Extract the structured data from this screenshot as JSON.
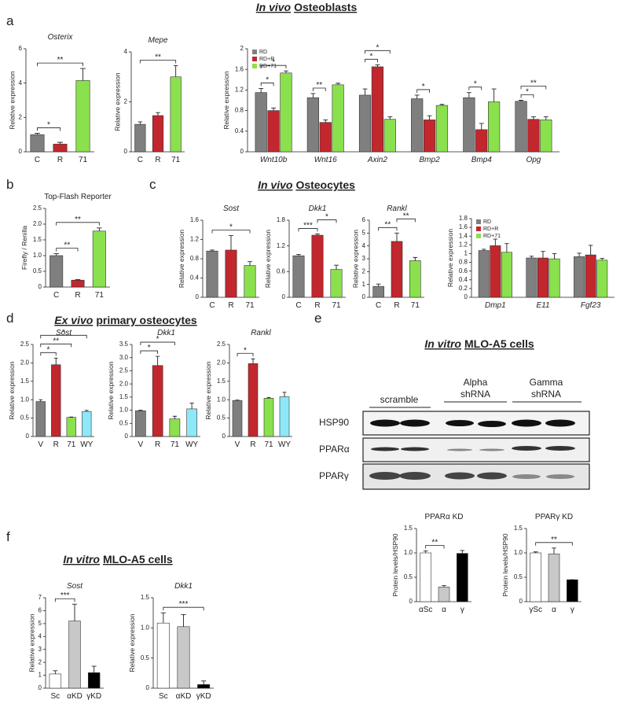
{
  "panels": [
    {
      "letter": "a",
      "heading": {
        "emphasis": "In vivo",
        "text": "Osteoblasts"
      }
    },
    {
      "letter": "b"
    },
    {
      "letter": "c",
      "heading": {
        "emphasis": "In vivo",
        "text": "Osteocytes"
      }
    },
    {
      "letter": "d",
      "heading": {
        "emphasis": "Ex vivo",
        "text": "primary osteocytes"
      }
    },
    {
      "letter": "e",
      "heading": {
        "emphasis": "In vitro",
        "text": "MLO-A5 cells"
      }
    },
    {
      "letter": "f",
      "heading": {
        "emphasis": "In vitro",
        "text": "MLO-A5 cells"
      }
    }
  ],
  "blot": {
    "groups": [
      [
        "scramble"
      ],
      [
        "Alpha",
        "shRNA"
      ],
      [
        "Gamma",
        "shRNA"
      ]
    ],
    "rows": [
      "HSP90",
      "PPARα",
      "PPARγ"
    ]
  },
  "chart_data": [
    {
      "type": "bar",
      "title": "Osterix",
      "italic_title": true,
      "ylabel": "Relative expression",
      "categories": [
        "C",
        "R",
        "71"
      ],
      "values": [
        1.0,
        0.45,
        4.15
      ],
      "errors": [
        0.08,
        0.1,
        0.7
      ],
      "colors": [
        "#7f7f7f",
        "#c1272d",
        "#8be04e"
      ],
      "ylim": [
        0,
        6
      ],
      "yticks": [
        0,
        2,
        4,
        6
      ],
      "significance": [
        {
          "label": "*",
          "between": [
            "C",
            "R"
          ]
        },
        {
          "label": "**",
          "between": [
            "C",
            "71"
          ]
        }
      ]
    },
    {
      "type": "bar",
      "title": "Mepe",
      "italic_title": true,
      "ylabel": "Relative expression",
      "categories": [
        "C",
        "R",
        "71"
      ],
      "values": [
        1.1,
        1.45,
        3.0
      ],
      "errors": [
        0.1,
        0.12,
        0.45
      ],
      "colors": [
        "#7f7f7f",
        "#c1272d",
        "#8be04e"
      ],
      "ylim": [
        0,
        4
      ],
      "yticks": [
        0,
        2,
        4
      ],
      "significance": [
        {
          "label": "**",
          "between": [
            "C",
            "71"
          ]
        }
      ]
    },
    {
      "type": "bar",
      "ylabel": "Relative expression",
      "italic_categories": true,
      "legend": "top-left",
      "categories": [
        "Wnt10b",
        "Wnt16",
        "Axin2",
        "Bmp2",
        "Bmp4",
        "Opg"
      ],
      "series": [
        {
          "name": "RD",
          "color": "#7f7f7f",
          "values": [
            1.15,
            1.05,
            1.1,
            1.03,
            1.05,
            0.98
          ],
          "errors": [
            0.08,
            0.08,
            0.12,
            0.07,
            0.1,
            0.02
          ]
        },
        {
          "name": "RD+R",
          "color": "#c1272d",
          "values": [
            0.8,
            0.57,
            1.65,
            0.62,
            0.43,
            0.63
          ],
          "errors": [
            0.05,
            0.05,
            0.04,
            0.08,
            0.12,
            0.05
          ]
        },
        {
          "name": "RD+71",
          "color": "#8be04e",
          "values": [
            1.53,
            1.3,
            0.63,
            0.9,
            0.97,
            0.62
          ],
          "errors": [
            0.04,
            0.03,
            0.05,
            0.02,
            0.25,
            0.06
          ]
        }
      ],
      "ylim": [
        0,
        2
      ],
      "yticks": [
        0,
        0.4,
        0.8,
        1.2,
        1.6,
        2
      ],
      "significance": [
        {
          "label": "*",
          "category": "Wnt10b",
          "between": [
            "RD",
            "RD+R"
          ]
        },
        {
          "label": "*",
          "category": "Wnt10b",
          "between": [
            "RD",
            "RD+71"
          ]
        },
        {
          "label": "**",
          "category": "Wnt16",
          "between": [
            "RD",
            "RD+R"
          ]
        },
        {
          "label": "*",
          "category": "Axin2",
          "between": [
            "RD",
            "RD+R"
          ]
        },
        {
          "label": "*",
          "category": "Axin2",
          "between": [
            "RD",
            "RD+71"
          ]
        },
        {
          "label": "*",
          "category": "Bmp2",
          "between": [
            "RD",
            "RD+R"
          ]
        },
        {
          "label": "*",
          "category": "Bmp4",
          "between": [
            "RD",
            "RD+R"
          ]
        },
        {
          "label": "*",
          "category": "Opg",
          "between": [
            "RD",
            "RD+R"
          ]
        },
        {
          "label": "**",
          "category": "Opg",
          "between": [
            "RD",
            "RD+71"
          ]
        }
      ]
    },
    {
      "type": "bar",
      "title": "Top-Flash Reporter",
      "ylabel": "Firefly / Renilla",
      "categories": [
        "C",
        "R",
        "71"
      ],
      "values": [
        1.0,
        0.22,
        1.78
      ],
      "errors": [
        0.06,
        0.02,
        0.1
      ],
      "colors": [
        "#7f7f7f",
        "#c1272d",
        "#8be04e"
      ],
      "ylim": [
        0,
        2.5
      ],
      "yticks": [
        0,
        0.5,
        {
          "value": 1,
          "label": "1.0"
        },
        1.5,
        {
          "value": 2,
          "label": "2.0"
        },
        2.5
      ],
      "significance": [
        {
          "label": "**",
          "between": [
            "C",
            "R"
          ]
        },
        {
          "label": "**",
          "between": [
            "C",
            "71"
          ]
        }
      ]
    },
    {
      "type": "bar",
      "title": "Sost",
      "italic_title": true,
      "ylabel": "Relative expression",
      "categories": [
        "C",
        "R",
        "71"
      ],
      "values": [
        0.96,
        0.98,
        0.66
      ],
      "errors": [
        0.02,
        0.3,
        0.08
      ],
      "colors": [
        "#7f7f7f",
        "#c1272d",
        "#8be04e"
      ],
      "ylim": [
        0,
        1.6
      ],
      "yticks": [
        0,
        0.4,
        0.8,
        1.2,
        1.6
      ],
      "significance": [
        {
          "label": "*",
          "between": [
            "C",
            "71"
          ]
        }
      ]
    },
    {
      "type": "bar",
      "title": "Dkk1",
      "italic_title": true,
      "ylabel": "Relative expression",
      "categories": [
        "C",
        "R",
        "71"
      ],
      "values": [
        0.97,
        1.45,
        0.65
      ],
      "errors": [
        0.03,
        0.03,
        0.1
      ],
      "colors": [
        "#7f7f7f",
        "#c1272d",
        "#8be04e"
      ],
      "ylim": [
        0,
        1.8
      ],
      "yticks": [
        0,
        0.6,
        1.2,
        1.8
      ],
      "significance": [
        {
          "label": "***",
          "between": [
            "C",
            "R"
          ]
        },
        {
          "label": "*",
          "between": [
            "R",
            "71"
          ]
        }
      ]
    },
    {
      "type": "bar",
      "title": "Rankl",
      "italic_title": true,
      "ylabel": "Relative expression",
      "categories": [
        "C",
        "R",
        "71"
      ],
      "values": [
        0.85,
        4.35,
        2.85
      ],
      "errors": [
        0.18,
        0.65,
        0.25
      ],
      "colors": [
        "#7f7f7f",
        "#c1272d",
        "#8be04e"
      ],
      "ylim": [
        0,
        6
      ],
      "yticks": [
        0,
        1,
        2,
        3,
        4,
        5,
        6
      ],
      "significance": [
        {
          "label": "**",
          "between": [
            "C",
            "R"
          ]
        },
        {
          "label": "**",
          "between": [
            "R",
            "71"
          ]
        }
      ]
    },
    {
      "type": "bar",
      "ylabel": "Relative expression",
      "italic_categories": true,
      "legend": "top-left",
      "categories": [
        "Dmp1",
        "E11",
        "Fgf23"
      ],
      "series": [
        {
          "name": "RD",
          "color": "#7f7f7f",
          "values": [
            1.07,
            0.9,
            0.93
          ],
          "errors": [
            0.03,
            0.04,
            0.08
          ]
        },
        {
          "name": "RD+R",
          "color": "#c1272d",
          "values": [
            1.18,
            0.9,
            0.97
          ],
          "errors": [
            0.15,
            0.15,
            0.22
          ]
        },
        {
          "name": "RD+71",
          "color": "#8be04e",
          "values": [
            1.03,
            0.88,
            0.85
          ],
          "errors": [
            0.2,
            0.12,
            0.04
          ]
        }
      ],
      "ylim": [
        0,
        1.8
      ],
      "yticks": [
        0,
        0.2,
        0.4,
        0.6,
        0.8,
        1,
        1.2,
        1.4,
        1.6,
        1.8
      ]
    },
    {
      "type": "bar",
      "title": "Sost",
      "italic_title": true,
      "ylabel": "Relative expression",
      "categories": [
        "V",
        "R",
        "71",
        "WY"
      ],
      "values": [
        0.95,
        1.95,
        0.52,
        0.68
      ],
      "errors": [
        0.05,
        0.18,
        0.01,
        0.03
      ],
      "colors": [
        "#7f7f7f",
        "#c1272d",
        "#8be04e",
        "#8ee8f8"
      ],
      "ylim": [
        0,
        2.5
      ],
      "yticks": [
        0,
        0.5,
        {
          "value": 1,
          "label": "1.0"
        },
        1.5,
        {
          "value": 2,
          "label": "2.0"
        },
        2.5
      ],
      "significance": [
        {
          "label": "*",
          "between": [
            "V",
            "R"
          ]
        },
        {
          "label": "**",
          "between": [
            "V",
            "71"
          ]
        },
        {
          "label": "*",
          "between": [
            "V",
            "WY"
          ]
        }
      ]
    },
    {
      "type": "bar",
      "title": "Dkk1",
      "italic_title": true,
      "ylabel": "Relative expression",
      "categories": [
        "V",
        "R",
        "71",
        "WY"
      ],
      "values": [
        0.98,
        2.7,
        0.67,
        1.05
      ],
      "errors": [
        0.02,
        0.35,
        0.1,
        0.22
      ],
      "colors": [
        "#7f7f7f",
        "#c1272d",
        "#8be04e",
        "#8ee8f8"
      ],
      "ylim": [
        0,
        3.5
      ],
      "yticks": [
        0,
        0.5,
        {
          "value": 1,
          "label": "1.0"
        },
        1.5,
        {
          "value": 2,
          "label": "2.0"
        },
        2.5,
        {
          "value": 3,
          "label": "3.0"
        },
        3.5
      ],
      "significance": [
        {
          "label": "*",
          "between": [
            "V",
            "R"
          ]
        },
        {
          "label": "*",
          "between": [
            "V",
            "71"
          ]
        }
      ]
    },
    {
      "type": "bar",
      "title": "Rankl",
      "italic_title": true,
      "ylabel": "Relative expression",
      "categories": [
        "V",
        "R",
        "71",
        "WY"
      ],
      "values": [
        0.98,
        1.98,
        1.04,
        1.08
      ],
      "errors": [
        0.01,
        0.13,
        0.02,
        0.12
      ],
      "colors": [
        "#7f7f7f",
        "#c1272d",
        "#8be04e",
        "#8ee8f8"
      ],
      "ylim": [
        0,
        2.5
      ],
      "yticks": [
        0,
        0.5,
        {
          "value": 1,
          "label": "1.0"
        },
        1.5,
        {
          "value": 2,
          "label": "2.0"
        },
        2.5
      ],
      "significance": [
        {
          "label": "*",
          "between": [
            "V",
            "R"
          ]
        }
      ]
    },
    {
      "type": "bar",
      "title": "PPARα KD",
      "ylabel": "Protein levels/HSP90",
      "categories": [
        "αSc",
        "α",
        "γ"
      ],
      "values": [
        1.0,
        0.3,
        0.99
      ],
      "errors": [
        0.04,
        0.03,
        0.06
      ],
      "colors": [
        "#ffffff",
        "#c8c8c8",
        "#000000"
      ],
      "ylim": [
        0,
        1.5
      ],
      "yticks": [
        0,
        0.5,
        {
          "value": 1,
          "label": "1.0"
        },
        1.5
      ],
      "significance": [
        {
          "label": "**",
          "between": [
            "αSc",
            "α"
          ]
        }
      ]
    },
    {
      "type": "bar",
      "title": "PPARγ KD",
      "ylabel": "Protein levels/HSP90",
      "categories": [
        "γSc",
        "α",
        "γ"
      ],
      "values": [
        1.0,
        0.98,
        0.45
      ],
      "errors": [
        0.02,
        0.12,
        0
      ],
      "colors": [
        "#ffffff",
        "#c8c8c8",
        "#000000"
      ],
      "ylim": [
        0,
        1.5
      ],
      "yticks": [
        0,
        0.5,
        {
          "value": 1,
          "label": "1.0"
        },
        1.5
      ],
      "significance": [
        {
          "label": "**",
          "between": [
            "γSc",
            "γ"
          ]
        }
      ]
    },
    {
      "type": "bar",
      "title": "Sost",
      "italic_title": true,
      "ylabel": "Relative expression",
      "categories": [
        "Sc",
        "αKD",
        "γKD"
      ],
      "values": [
        1.1,
        5.2,
        1.2
      ],
      "errors": [
        0.25,
        1.3,
        0.5
      ],
      "colors": [
        "#ffffff",
        "#c8c8c8",
        "#000000"
      ],
      "ylim": [
        0,
        7
      ],
      "yticks": [
        0,
        1,
        2,
        3,
        4,
        5,
        6,
        7
      ],
      "significance": [
        {
          "label": "***",
          "between": [
            "Sc",
            "αKD"
          ]
        }
      ]
    },
    {
      "type": "bar",
      "title": "Dkk1",
      "italic_title": true,
      "ylabel": "Relative expression",
      "categories": [
        "Sc",
        "αKD",
        "γKD"
      ],
      "values": [
        1.08,
        1.02,
        0.06
      ],
      "errors": [
        0.17,
        0.2,
        0.06
      ],
      "colors": [
        "#ffffff",
        "#c8c8c8",
        "#000000"
      ],
      "ylim": [
        0,
        1.5
      ],
      "yticks": [
        0,
        0.5,
        {
          "value": 1,
          "label": "1.0"
        },
        1.5
      ],
      "significance": [
        {
          "label": "***",
          "between": [
            "Sc",
            "γKD"
          ]
        }
      ]
    }
  ]
}
